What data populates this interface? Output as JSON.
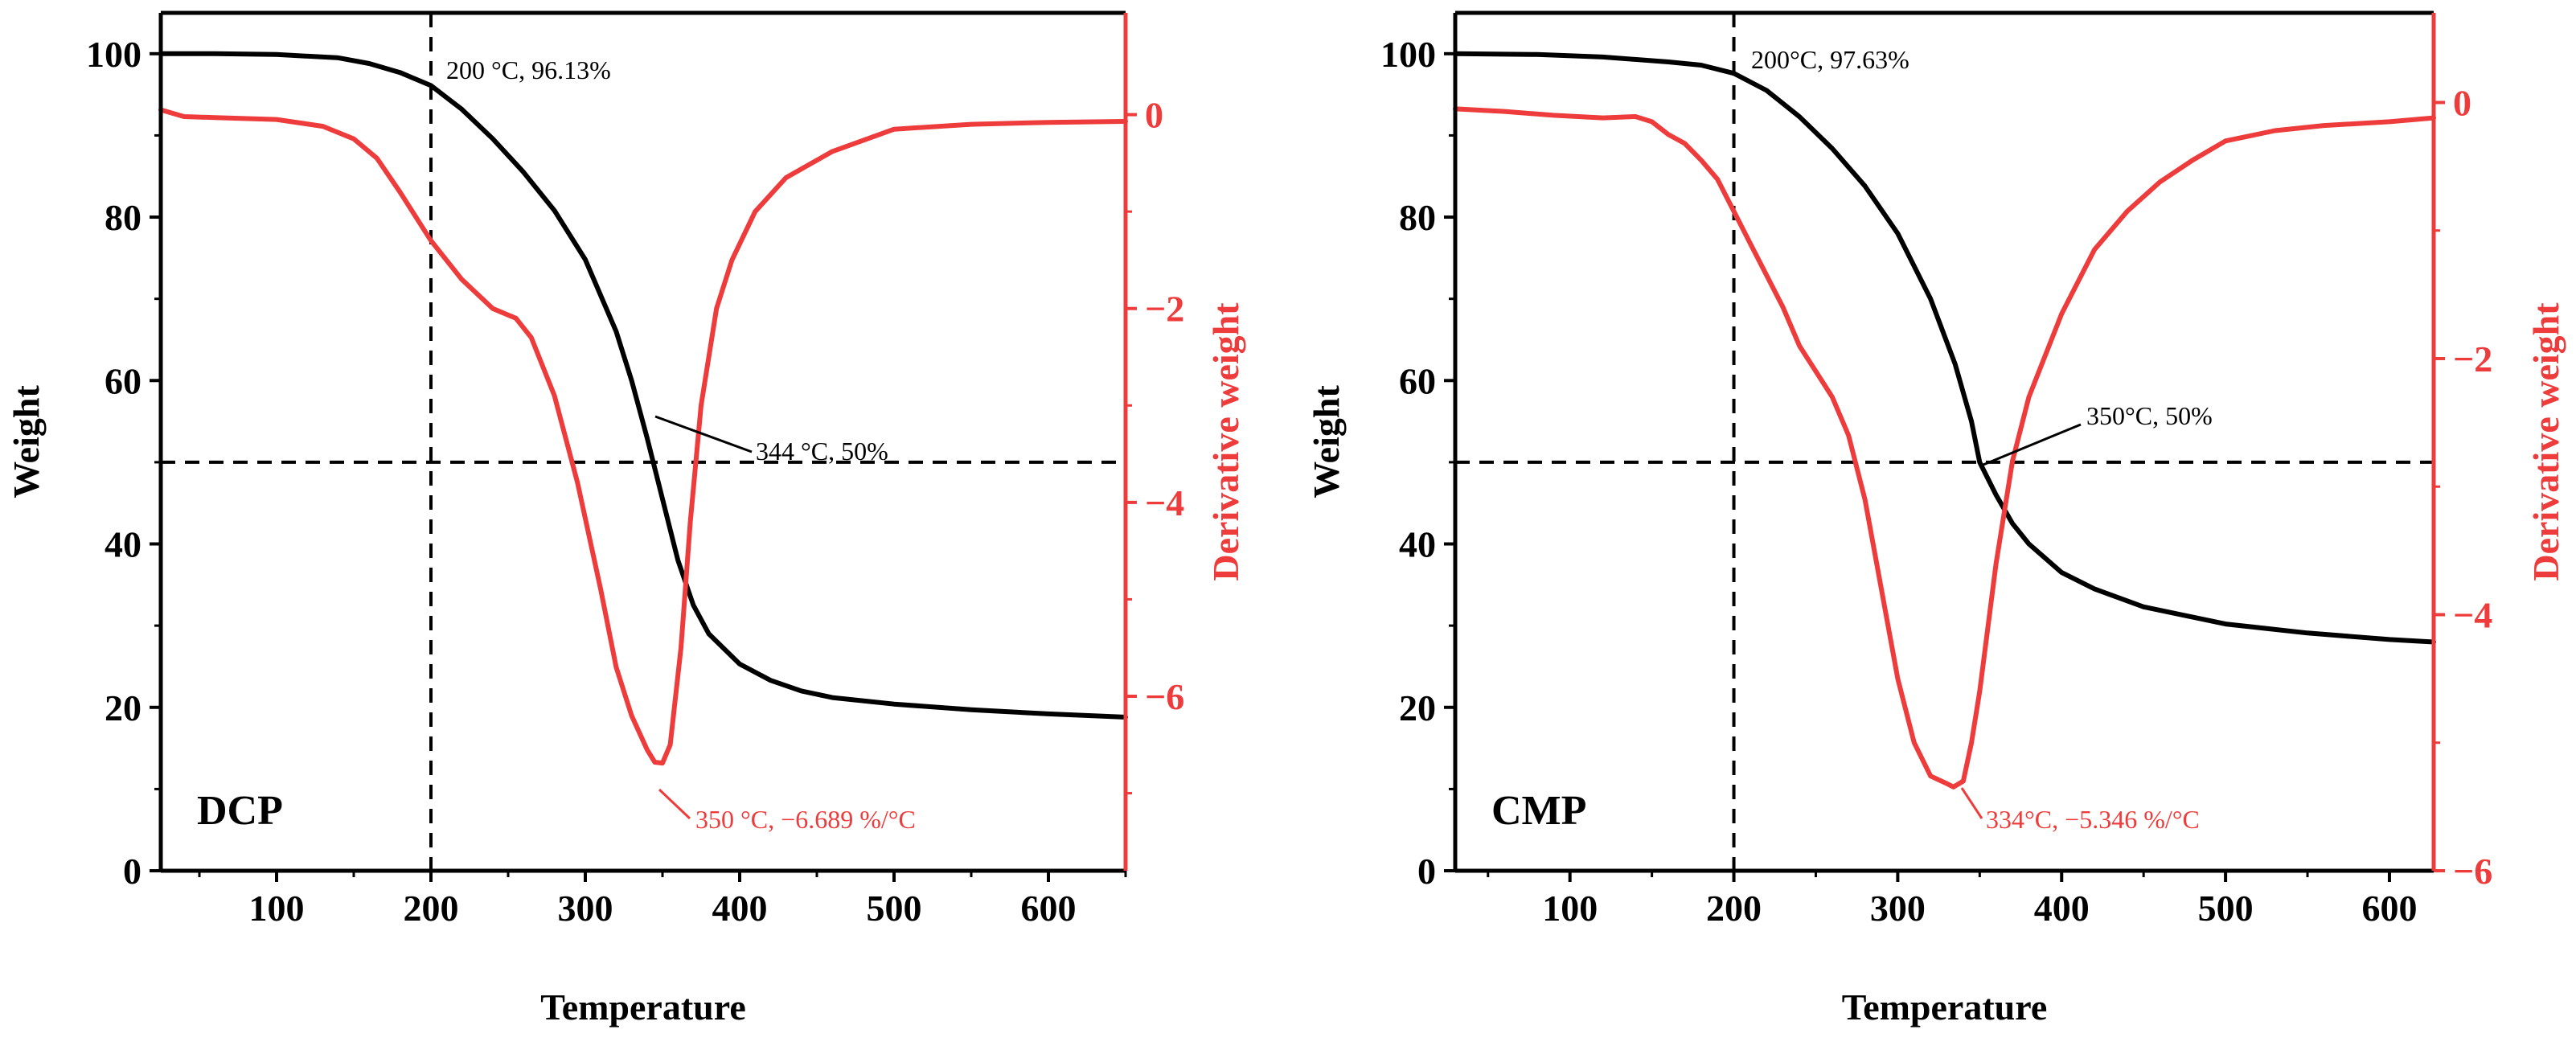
{
  "colors": {
    "weight": "#000000",
    "derivative": "#ee3b3b",
    "axis_right": "#ee3b3b"
  },
  "chart_data": [
    {
      "type": "line",
      "panel_label": "DCP",
      "xlabel": "Temperature",
      "ylabel": "Weight",
      "y2label": "Derivative weight",
      "xlim": [
        25,
        650
      ],
      "ylim": [
        0,
        105
      ],
      "y2lim": [
        -7.8,
        1.05
      ],
      "xticks": [
        100,
        200,
        300,
        400,
        500,
        600
      ],
      "yticks": [
        0,
        20,
        40,
        60,
        80,
        100
      ],
      "y2ticks": [
        0,
        -2,
        -4,
        -6
      ],
      "xtick_labels": [
        "100",
        "200",
        "300",
        "400",
        "500",
        "600"
      ],
      "ytick_labels": [
        "0",
        "20",
        "40",
        "60",
        "80",
        "100"
      ],
      "y2tick_labels": [
        "0",
        "−2",
        "−4",
        "−6"
      ],
      "series": [
        {
          "name": "Weight",
          "axis": "left",
          "x": [
            25,
            60,
            100,
            140,
            160,
            180,
            200,
            220,
            240,
            260,
            280,
            300,
            320,
            330,
            340,
            344,
            350,
            360,
            370,
            380,
            400,
            420,
            440,
            460,
            500,
            550,
            600,
            650
          ],
          "values": [
            100,
            100,
            99.9,
            99.5,
            98.8,
            97.7,
            96.1,
            93.2,
            89.6,
            85.5,
            80.8,
            74.8,
            66,
            60,
            53,
            50,
            45.5,
            38,
            32.5,
            29,
            25.3,
            23.3,
            22,
            21.2,
            20.4,
            19.7,
            19.2,
            18.8
          ]
        },
        {
          "name": "Derivative weight",
          "axis": "right",
          "x": [
            25,
            40,
            60,
            100,
            130,
            150,
            165,
            180,
            200,
            220,
            240,
            255,
            265,
            280,
            295,
            310,
            320,
            330,
            340,
            345,
            350,
            355,
            362,
            368,
            375,
            385,
            395,
            410,
            430,
            460,
            500,
            550,
            600,
            650
          ],
          "values": [
            0.05,
            -0.02,
            -0.03,
            -0.05,
            -0.12,
            -0.25,
            -0.45,
            -0.8,
            -1.3,
            -1.7,
            -2.0,
            -2.1,
            -2.3,
            -2.9,
            -3.8,
            -4.9,
            -5.7,
            -6.2,
            -6.55,
            -6.68,
            -6.689,
            -6.5,
            -5.5,
            -4.2,
            -3.0,
            -2.0,
            -1.5,
            -1.0,
            -0.65,
            -0.38,
            -0.15,
            -0.1,
            -0.08,
            -0.07
          ]
        }
      ],
      "reference_lines": {
        "vertical_x": 200,
        "horizontal_y": 50
      },
      "annotations": {
        "onset": "200 °C, 96.13%",
        "half": "344 °C, 50%",
        "peak": "350 °C, −6.689 %/°C"
      }
    },
    {
      "type": "line",
      "panel_label": "CMP",
      "xlabel": "Temperature",
      "ylabel": "Weight",
      "y2label": "Derivative weight",
      "xlim": [
        30,
        627
      ],
      "ylim": [
        0,
        105
      ],
      "y2lim": [
        -6,
        0.7
      ],
      "xticks": [
        100,
        200,
        300,
        400,
        500,
        600
      ],
      "yticks": [
        0,
        20,
        40,
        60,
        80,
        100
      ],
      "y2ticks": [
        0,
        -2,
        -4,
        -6
      ],
      "xtick_labels": [
        "100",
        "200",
        "300",
        "400",
        "500",
        "600"
      ],
      "ytick_labels": [
        "0",
        "20",
        "40",
        "60",
        "80",
        "100"
      ],
      "y2tick_labels": [
        "0",
        "−2",
        "−4",
        "−6"
      ],
      "series": [
        {
          "name": "Weight",
          "axis": "left",
          "x": [
            30,
            80,
            120,
            160,
            180,
            200,
            220,
            240,
            260,
            280,
            300,
            320,
            335,
            345,
            350,
            360,
            370,
            380,
            400,
            420,
            450,
            500,
            550,
            600,
            627
          ],
          "values": [
            100,
            99.9,
            99.6,
            99,
            98.6,
            97.6,
            95.5,
            92.3,
            88.4,
            83.8,
            78,
            70,
            62,
            55,
            50,
            46,
            42.5,
            40,
            36.5,
            34.5,
            32.3,
            30.2,
            29.1,
            28.3,
            28
          ]
        },
        {
          "name": "Derivative weight",
          "axis": "right",
          "x": [
            30,
            60,
            90,
            120,
            140,
            150,
            160,
            170,
            180,
            190,
            200,
            210,
            220,
            230,
            240,
            250,
            260,
            270,
            280,
            290,
            300,
            310,
            320,
            330,
            334,
            340,
            345,
            350,
            360,
            370,
            380,
            400,
            420,
            440,
            460,
            480,
            500,
            530,
            560,
            600,
            627
          ],
          "values": [
            -0.05,
            -0.07,
            -0.1,
            -0.12,
            -0.11,
            -0.15,
            -0.25,
            -0.32,
            -0.45,
            -0.6,
            -0.85,
            -1.1,
            -1.35,
            -1.6,
            -1.9,
            -2.1,
            -2.3,
            -2.6,
            -3.1,
            -3.8,
            -4.5,
            -5,
            -5.26,
            -5.32,
            -5.346,
            -5.3,
            -5.0,
            -4.6,
            -3.6,
            -2.8,
            -2.3,
            -1.65,
            -1.15,
            -0.85,
            -0.62,
            -0.45,
            -0.3,
            -0.22,
            -0.18,
            -0.15,
            -0.12
          ]
        }
      ],
      "reference_lines": {
        "vertical_x": 200,
        "horizontal_y": 50
      },
      "annotations": {
        "onset": "200°C, 97.63%",
        "half": "350°C, 50%",
        "peak": "334°C, −5.346 %/°C"
      }
    }
  ]
}
